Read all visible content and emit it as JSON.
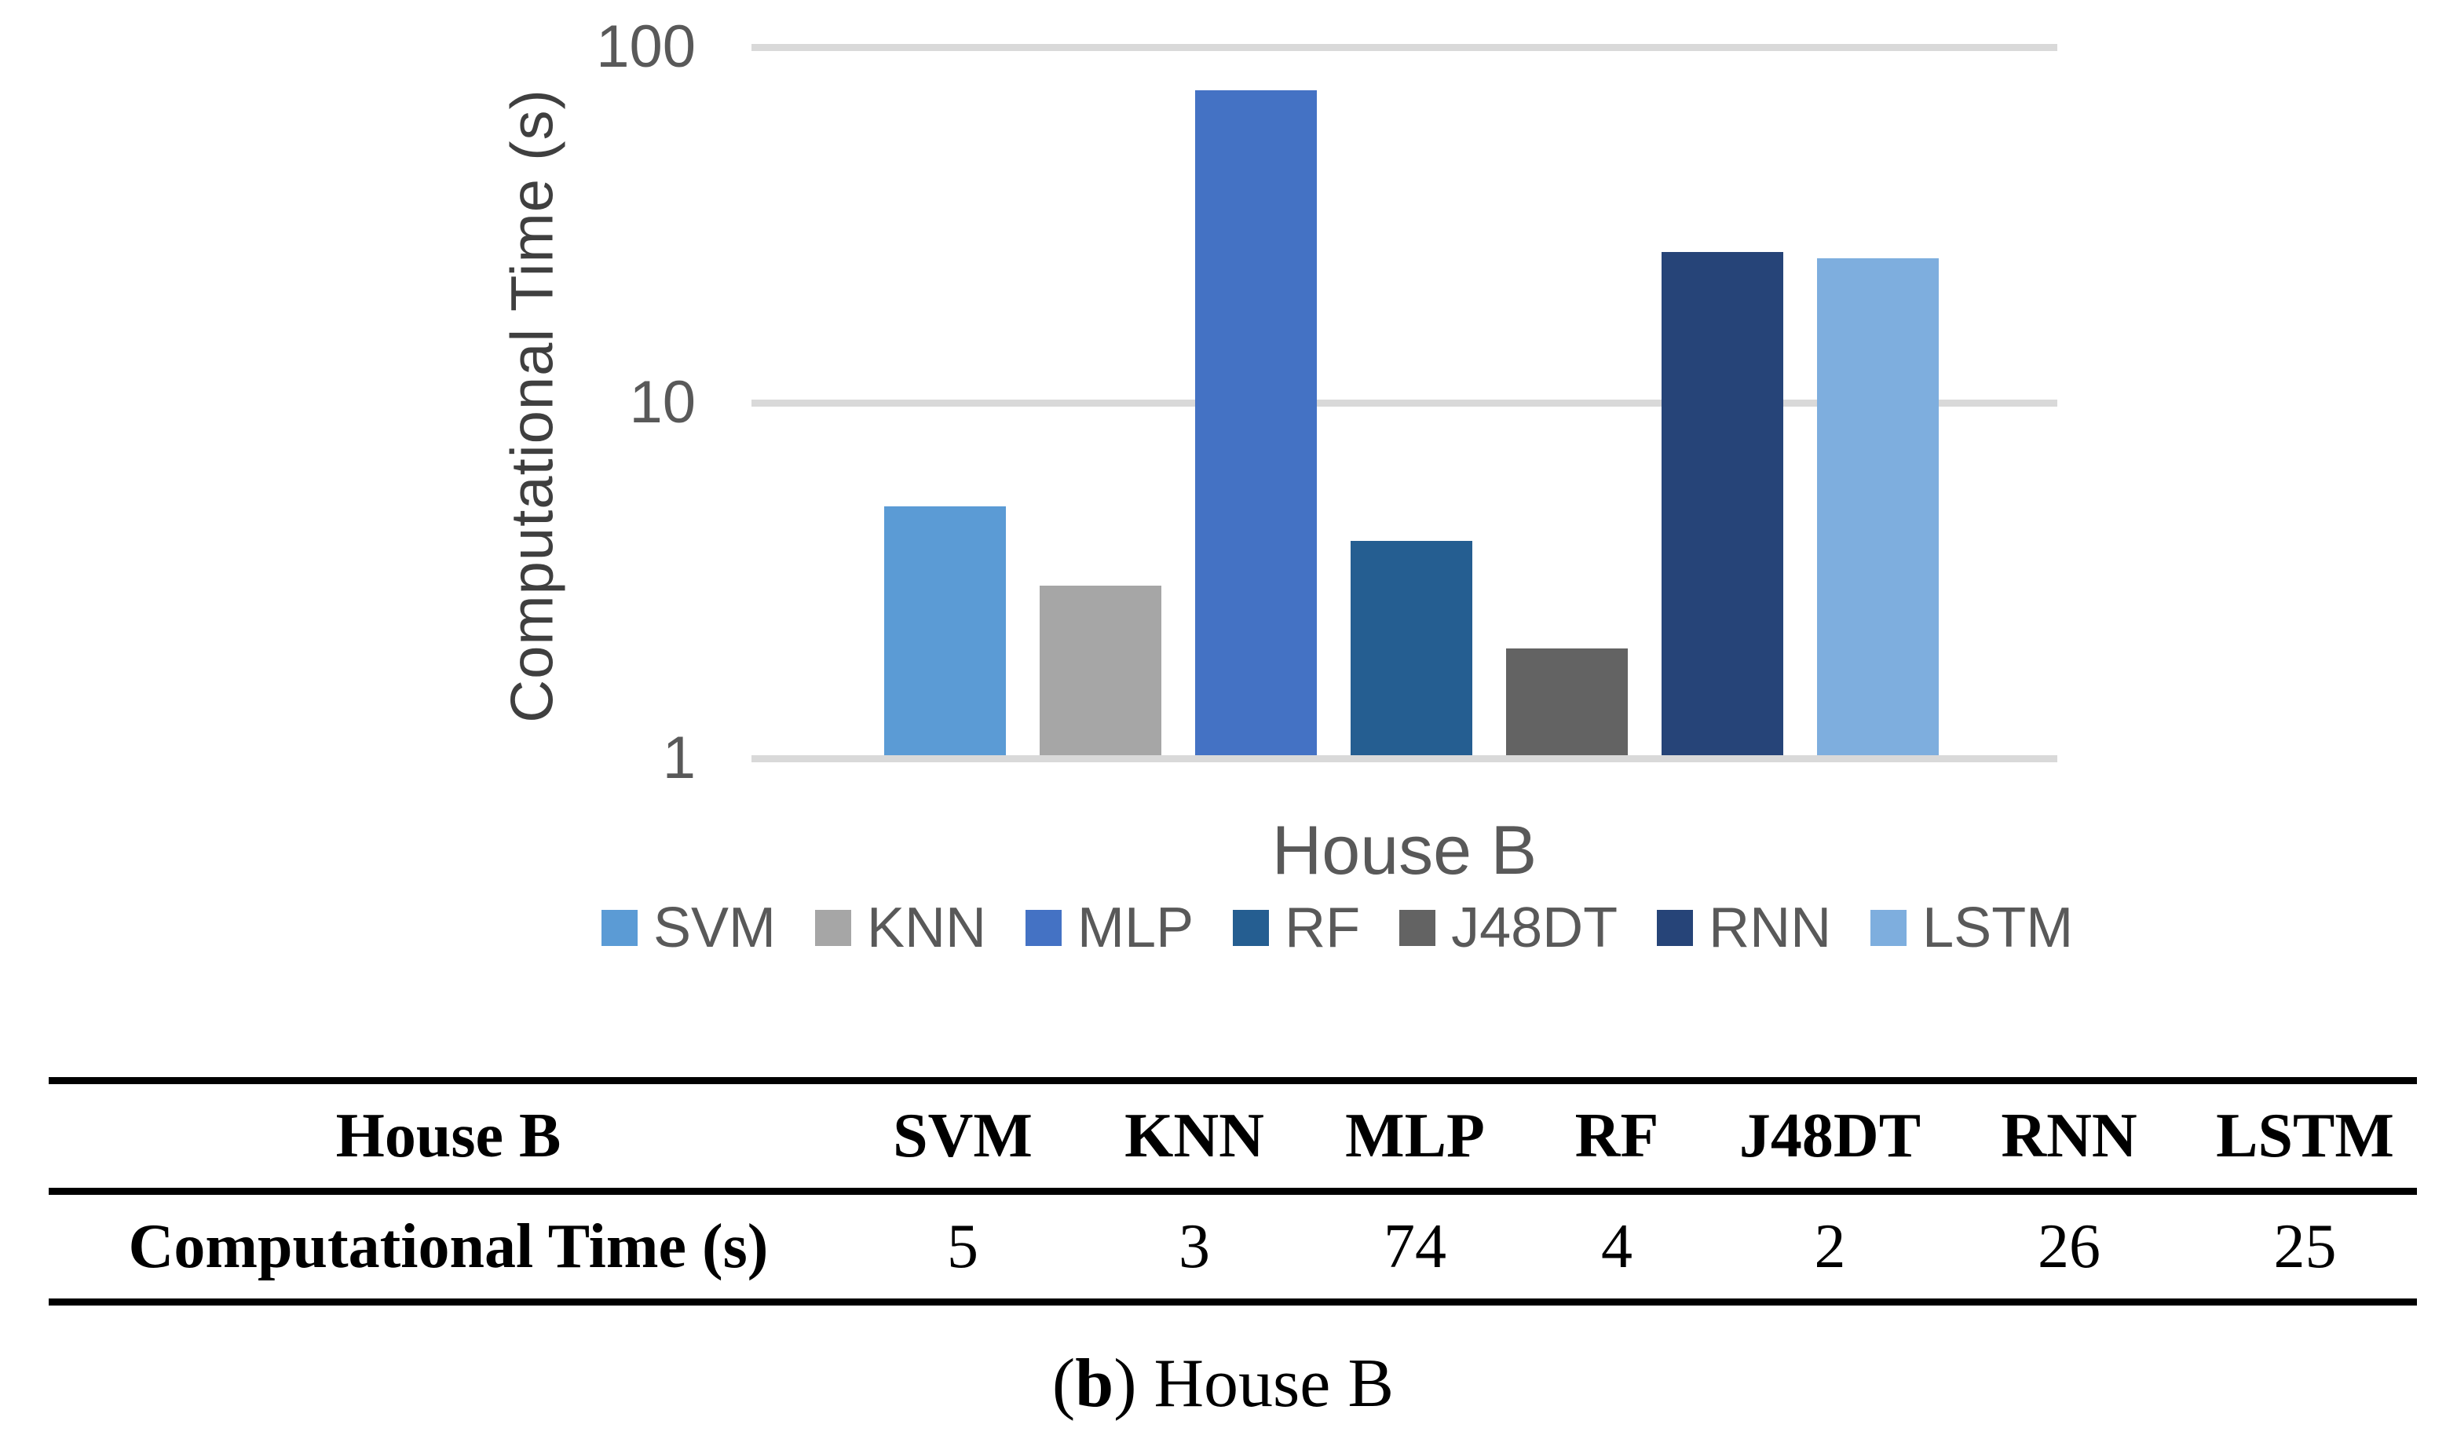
{
  "chart_data": {
    "type": "bar",
    "title": "",
    "categories": [
      "SVM",
      "KNN",
      "MLP",
      "RF",
      "J48DT",
      "RNN",
      "LSTM"
    ],
    "values": [
      5,
      3,
      74,
      4,
      2,
      26,
      25
    ],
    "colors": [
      "#5B9BD5",
      "#A6A6A6",
      "#4472C4",
      "#255E91",
      "#636363",
      "#264478",
      "#7EAEDE"
    ],
    "xlabel": "House B",
    "ylabel": "Computational Time (s)",
    "yscale": "log",
    "ylim": [
      1,
      100
    ],
    "ytick_values": [
      100,
      10,
      1
    ],
    "ytick_labels": [
      "100",
      "10",
      "1"
    ],
    "grid": "horizontal-gridlines",
    "gridline_color": "#D9D9D9",
    "legend_position": "bottom"
  },
  "table": {
    "header": [
      "House B",
      "SVM",
      "KNN",
      "MLP",
      "RF",
      "J48DT",
      "RNN",
      "LSTM"
    ],
    "row_label": "Computational Time (s)",
    "values": [
      "5",
      "3",
      "74",
      "4",
      "2",
      "26",
      "25"
    ]
  },
  "caption": {
    "open": "(",
    "marker": "b",
    "close": ")",
    "text": " House B"
  }
}
